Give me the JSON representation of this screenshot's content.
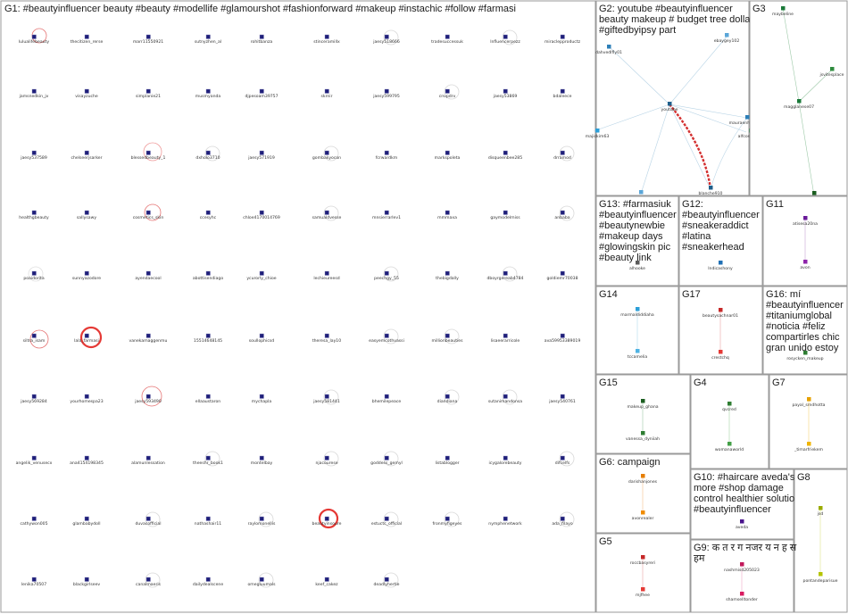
{
  "panels": [
    {
      "id": "G1",
      "title_lines": [
        "G1: #beautyinfluencer beauty #beauty #modellife #glamourshot #fashionforward #makeup #instachic #follow #farmasi"
      ],
      "color": "#1f1f7a"
    },
    {
      "id": "G2",
      "title_lines": [
        "G2: youtube #beautyinfluencer",
        "beauty makeup # budget tree dollar",
        "#giftedbyipsy part"
      ],
      "color": "#2c7fb8"
    },
    {
      "id": "G3",
      "title_lines": [
        "G3"
      ],
      "color": "#1b7a3a"
    },
    {
      "id": "G13",
      "title_lines": [
        "G13: #farmasiuk",
        "#beautyinfluencer",
        "#beautynewbie",
        "#makeup days",
        "#glowingskin pic",
        "#beauty link"
      ],
      "color": "#5a5a5a"
    },
    {
      "id": "G12",
      "title_lines": [
        "G12:",
        "#beautyinfluencer",
        "#sneakeraddict",
        "#latina",
        "#sneakerhead"
      ],
      "color": "#1f6fb4"
    },
    {
      "id": "G11",
      "title_lines": [
        "G11"
      ],
      "color": "#6a1b9a"
    },
    {
      "id": "G14",
      "title_lines": [
        "G14"
      ],
      "color": "#2c9fd8"
    },
    {
      "id": "G17",
      "title_lines": [
        "G17"
      ],
      "color": "#c62828"
    },
    {
      "id": "G16",
      "title_lines": [
        "G16: mí",
        "#beautyinfluencer",
        "#titaniumglobal",
        "#noticia #feliz",
        "compartirles chic",
        "gran unido estoy"
      ],
      "color": "#2e7d32"
    },
    {
      "id": "G15",
      "title_lines": [
        "G15"
      ],
      "color": "#1b5e20"
    },
    {
      "id": "G4",
      "title_lines": [
        "G4"
      ],
      "color": "#2e7d32"
    },
    {
      "id": "G7",
      "title_lines": [
        "G7"
      ],
      "color": "#e6a100"
    },
    {
      "id": "G6",
      "title_lines": [
        "G6: campaign"
      ],
      "color": "#e67e00"
    },
    {
      "id": "G10",
      "title_lines": [
        "G10: #haircare aveda's",
        "more #shop damage",
        "control healthier solution",
        "#beautyinfluencer"
      ],
      "color": "#4a148c"
    },
    {
      "id": "G8",
      "title_lines": [
        "G8"
      ],
      "color": "#9aab00"
    },
    {
      "id": "G5",
      "title_lines": [
        "G5"
      ],
      "color": "#c62828"
    },
    {
      "id": "G9",
      "title_lines": [
        "G9: क त र ग नजर य न ह स",
        "हम"
      ],
      "color": "#c2185b"
    }
  ],
  "g1_nodes": [
    "lulualifebeauty",
    "thecitizen_rerse",
    "marr11550921",
    "sutnyzhen_al",
    "rohitbanza",
    "stinceramillx",
    "jaesy518666",
    "tradesuccessuk",
    "lnfluencerpezz",
    "miraclepproductz",
    "jamsnedkin_jv",
    "visayzuche",
    "simplanie21",
    "musmyanda",
    "djpesoam39757",
    "skrnir",
    "jaesy599795",
    "cnvpdrv",
    "jaesy53869",
    "bdaleece",
    "jaesy537589",
    "chelseerjsarker",
    "blessedbeauty_1",
    "dxholo3710",
    "jaesy571919",
    "gombakyocon",
    "fcrwardkm",
    "markspoleta",
    "disqueenbee285",
    "drramod",
    "healthgbeauty",
    "sallysawy",
    "cosmetics_skin",
    "ccesyhc",
    "chloe4170014769",
    "samualdvesse",
    "mnsierrarlev1",
    "mmmaxa",
    "gaymodelmiss",
    "anbaba",
    "poaidorita",
    "sunnyazodore",
    "ayendaecool",
    "abottisendiago",
    "ycurorly_chioe",
    "lechieureesd",
    "peechgy_55",
    "thebigdally",
    "dboyrgereab4784",
    "goldiemr70038",
    "siltra_isam",
    "lala_farmasi",
    "vanekamaggenmu",
    "15514648145",
    "soullophicsd",
    "theresa_lay10",
    "easyemcothvassi",
    "millionbeauties",
    "lisaeerarricole",
    "ava59953389019",
    "jaesy569284",
    "yourhomespa23",
    "jaesy593490",
    "ellaaustaron",
    "mychapla",
    "jaesy581441",
    "bhemilepeace",
    "diandiana",
    "sutanimandonsa",
    "jaesy540761",
    "angelik_venusecx",
    "ana4154198345",
    "alamunlessation",
    "theeshr_book1",
    "montelbay",
    "njacourese",
    "goddess_gemyl",
    "listablogger",
    "icygalorebeauty",
    "difcelfs",
    "cathywon005",
    "glambabydoll",
    "duvacofficial",
    "nathashair11",
    "raylomonellis",
    "beautyinsoure",
    "estuctc_official",
    "fronmyfigeyes",
    "nymphenetwork",
    "ada_filayo",
    "lenika70507",
    "blackgirlseev",
    "canalmaeris",
    "dailydealscene",
    "omegluumals",
    "keef_cakez",
    "deadlyhertie"
  ],
  "group_nodes": {
    "G2": [
      "dahvedlfly01",
      "ebaygey102",
      "youtube",
      "mauraenhagen05",
      "alfcosmetics",
      "majickim63",
      "ixtlaccasfabrirum",
      "blanche910"
    ],
    "G3": [
      "maybeline",
      "jsvitesplace",
      "magglanese07",
      "milankcosmetics"
    ],
    "G13": [
      "alhooke"
    ],
    "G12": [
      "lndicashony"
    ],
    "G11": [
      "atisesa20na",
      "avon"
    ],
    "G14": [
      "marmaldiddiaha",
      "tccamelia"
    ],
    "G17": [
      "beautysachnar01",
      "crestchq"
    ],
    "G16": [
      "rosycken_makeup"
    ],
    "G15": [
      "makeup_ghana",
      "vanessa_dyniiah"
    ],
    "G4": [
      "qvcred",
      "womanaworld"
    ],
    "G7": [
      "payal_srndhotta",
      "_timarfriekem"
    ],
    "G6": [
      "darishanjones",
      "avonrealer"
    ],
    "G10": [
      "aveda"
    ],
    "G8": [
      "jsd",
      "pontandeparisue"
    ],
    "G5": [
      "roccbasyreri",
      "mjfhee"
    ],
    "G9": [
      "nashmisd205023",
      "shamselltonder"
    ]
  }
}
